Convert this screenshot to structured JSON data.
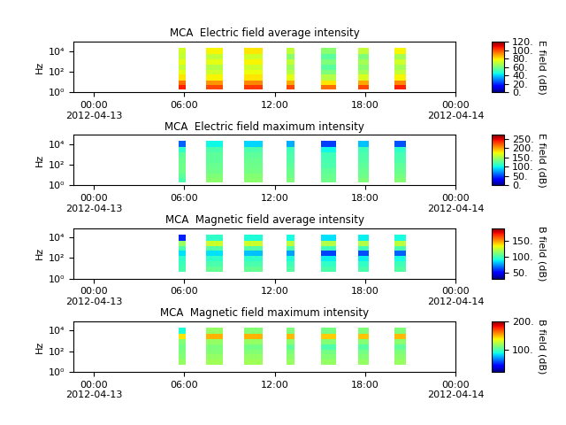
{
  "chart_data": [
    {
      "type": "heatmap",
      "title": "MCA  Electric field average intensity",
      "y_label": "Hz",
      "log": "y",
      "x": [
        [
          "2012-04-13 05:39",
          "2012-04-13 06:06"
        ],
        [
          "2012-04-13 07:27",
          "2012-04-13 08:34"
        ],
        [
          "2012-04-13 09:58",
          "2012-04-13 11:14"
        ],
        [
          "2012-04-13 12:48",
          "2012-04-13 13:20"
        ],
        [
          "2012-04-13 15:05",
          "2012-04-13 16:04"
        ],
        [
          "2012-04-13 17:32",
          "2012-04-13 18:14"
        ],
        [
          "2012-04-13 19:55",
          "2012-04-13 20:44"
        ]
      ],
      "y_edges": [
        2,
        5,
        15,
        50,
        150,
        500,
        1500,
        5000,
        20000
      ],
      "values": [
        [
          105,
          95,
          80,
          75,
          70,
          75,
          70,
          72
        ],
        [
          100,
          90,
          78,
          72,
          68,
          75,
          70,
          78
        ],
        [
          102,
          92,
          80,
          76,
          72,
          78,
          72,
          80
        ],
        [
          100,
          88,
          75,
          68,
          65,
          70,
          62,
          70
        ],
        [
          95,
          80,
          68,
          60,
          55,
          60,
          55,
          62
        ],
        [
          100,
          88,
          74,
          66,
          62,
          66,
          60,
          70
        ],
        [
          105,
          92,
          78,
          70,
          66,
          72,
          66,
          78
        ]
      ],
      "xlim": [
        "2012-04-12 22:40",
        "2012-04-14 00:00"
      ],
      "xticks": [
        {
          "value": "2012-04-13 00:00",
          "label": "00:00\n2012-04-13"
        },
        {
          "value": "2012-04-13 06:00",
          "label": "06:00"
        },
        {
          "value": "2012-04-13 12:00",
          "label": "12:00"
        },
        {
          "value": "2012-04-13 18:00",
          "label": "18:00"
        },
        {
          "value": "2012-04-14 00:00",
          "label": "00:00\n2012-04-14"
        }
      ],
      "ylim": [
        1,
        80000
      ],
      "yticks": [
        {
          "value": 1,
          "label": "10⁰"
        },
        {
          "value": 100,
          "label": "10²"
        },
        {
          "value": 10000,
          "label": "10⁴"
        }
      ],
      "colorbar_label": "E field (dB)",
      "colorbar_lim": [
        0,
        120
      ],
      "colorbar_ticks": [
        {
          "value": 0,
          "label": "0."
        },
        {
          "value": 20,
          "label": "20."
        },
        {
          "value": 40,
          "label": "40."
        },
        {
          "value": 60,
          "label": "60."
        },
        {
          "value": 80,
          "label": "80."
        },
        {
          "value": 100,
          "label": "100."
        },
        {
          "value": 120,
          "label": "120."
        }
      ]
    },
    {
      "type": "heatmap",
      "title": "MCA  Electric field maximum intensity",
      "y_label": "Hz",
      "log": "y",
      "x": [
        [
          "2012-04-13 05:39",
          "2012-04-13 06:06"
        ],
        [
          "2012-04-13 07:27",
          "2012-04-13 08:34"
        ],
        [
          "2012-04-13 09:58",
          "2012-04-13 11:14"
        ],
        [
          "2012-04-13 12:48",
          "2012-04-13 13:20"
        ],
        [
          "2012-04-13 15:05",
          "2012-04-13 16:04"
        ],
        [
          "2012-04-13 17:32",
          "2012-04-13 18:14"
        ],
        [
          "2012-04-13 19:55",
          "2012-04-13 20:44"
        ]
      ],
      "y_edges": [
        2,
        5,
        15,
        50,
        150,
        500,
        1500,
        5000,
        20000
      ],
      "values": [
        [
          120,
          125,
          130,
          130,
          128,
          125,
          110,
          60
        ],
        [
          140,
          135,
          130,
          128,
          125,
          125,
          120,
          100
        ],
        [
          140,
          138,
          132,
          130,
          128,
          125,
          120,
          90
        ],
        [
          135,
          130,
          128,
          125,
          122,
          120,
          115,
          80
        ],
        [
          130,
          128,
          125,
          120,
          118,
          115,
          100,
          50
        ],
        [
          135,
          130,
          128,
          125,
          122,
          120,
          115,
          85
        ],
        [
          138,
          132,
          128,
          125,
          120,
          118,
          110,
          55
        ]
      ],
      "xlim": [
        "2012-04-12 22:40",
        "2012-04-14 00:00"
      ],
      "xticks": [
        {
          "value": "2012-04-13 00:00",
          "label": "00:00\n2012-04-13"
        },
        {
          "value": "2012-04-13 06:00",
          "label": "06:00"
        },
        {
          "value": "2012-04-13 12:00",
          "label": "12:00"
        },
        {
          "value": "2012-04-13 18:00",
          "label": "18:00"
        },
        {
          "value": "2012-04-14 00:00",
          "label": "00:00\n2012-04-14"
        }
      ],
      "ylim": [
        1,
        80000
      ],
      "yticks": [
        {
          "value": 1,
          "label": "10⁰"
        },
        {
          "value": 100,
          "label": "10²"
        },
        {
          "value": 10000,
          "label": "10⁴"
        }
      ],
      "colorbar_label": "E field (dB)",
      "colorbar_lim": [
        0,
        270
      ],
      "colorbar_ticks": [
        {
          "value": 0,
          "label": "0."
        },
        {
          "value": 50,
          "label": "50."
        },
        {
          "value": 100,
          "label": "100."
        },
        {
          "value": 150,
          "label": "150."
        },
        {
          "value": 200,
          "label": "200."
        },
        {
          "value": 250,
          "label": "250."
        }
      ]
    },
    {
      "type": "heatmap",
      "title": "MCA  Magnetic field average intensity",
      "y_label": "Hz",
      "log": "y",
      "x": [
        [
          "2012-04-13 05:39",
          "2012-04-13 06:06"
        ],
        [
          "2012-04-13 07:27",
          "2012-04-13 08:34"
        ],
        [
          "2012-04-13 09:58",
          "2012-04-13 11:14"
        ],
        [
          "2012-04-13 12:48",
          "2012-04-13 13:20"
        ],
        [
          "2012-04-13 15:05",
          "2012-04-13 16:04"
        ],
        [
          "2012-04-13 17:32",
          "2012-04-13 18:14"
        ],
        [
          "2012-04-13 19:55",
          "2012-04-13 20:44"
        ]
      ],
      "y_edges": [
        2,
        5,
        15,
        50,
        150,
        500,
        1500,
        5000,
        20000
      ],
      "values": [
        [
          null,
          100,
          98,
          95,
          85,
          100,
          115,
          55
        ],
        [
          null,
          105,
          100,
          95,
          85,
          102,
          125,
          95
        ],
        [
          null,
          105,
          100,
          95,
          80,
          102,
          125,
          92
        ],
        [
          null,
          102,
          98,
          92,
          75,
          100,
          122,
          90
        ],
        [
          null,
          100,
          95,
          88,
          60,
          98,
          120,
          85
        ],
        [
          null,
          100,
          95,
          88,
          62,
          98,
          120,
          88
        ],
        [
          null,
          102,
          98,
          90,
          65,
          100,
          122,
          90
        ]
      ],
      "xlim": [
        "2012-04-12 22:40",
        "2012-04-14 00:00"
      ],
      "xticks": [
        {
          "value": "2012-04-13 00:00",
          "label": "00:00\n2012-04-13"
        },
        {
          "value": "2012-04-13 06:00",
          "label": "06:00"
        },
        {
          "value": "2012-04-13 12:00",
          "label": "12:00"
        },
        {
          "value": "2012-04-13 18:00",
          "label": "18:00"
        },
        {
          "value": "2012-04-14 00:00",
          "label": "00:00\n2012-04-14"
        }
      ],
      "ylim": [
        1,
        80000
      ],
      "yticks": [
        {
          "value": 1,
          "label": "10⁰"
        },
        {
          "value": 100,
          "label": "10²"
        },
        {
          "value": 10000,
          "label": "10⁴"
        }
      ],
      "colorbar_label": "B field (dB)",
      "colorbar_lim": [
        30,
        190
      ],
      "colorbar_ticks": [
        {
          "value": 50,
          "label": "50."
        },
        {
          "value": 100,
          "label": "100."
        },
        {
          "value": 150,
          "label": "150."
        }
      ]
    },
    {
      "type": "heatmap",
      "title": "MCA  Magnetic field maximum intensity",
      "y_label": "Hz",
      "log": "y",
      "x": [
        [
          "2012-04-13 05:39",
          "2012-04-13 06:06"
        ],
        [
          "2012-04-13 07:27",
          "2012-04-13 08:34"
        ],
        [
          "2012-04-13 09:58",
          "2012-04-13 11:14"
        ],
        [
          "2012-04-13 12:48",
          "2012-04-13 13:20"
        ],
        [
          "2012-04-13 15:05",
          "2012-04-13 16:04"
        ],
        [
          "2012-04-13 17:32",
          "2012-04-13 18:14"
        ],
        [
          "2012-04-13 19:55",
          "2012-04-13 20:44"
        ]
      ],
      "y_edges": [
        2,
        5,
        15,
        50,
        150,
        500,
        1500,
        5000,
        20000
      ],
      "values": [
        [
          null,
          115,
          112,
          110,
          108,
          112,
          140,
          90
        ],
        [
          null,
          118,
          115,
          112,
          110,
          115,
          150,
          115
        ],
        [
          null,
          118,
          115,
          112,
          108,
          115,
          150,
          112
        ],
        [
          null,
          116,
          113,
          110,
          105,
          113,
          148,
          110
        ],
        [
          null,
          115,
          112,
          108,
          100,
          112,
          145,
          108
        ],
        [
          null,
          115,
          112,
          108,
          102,
          112,
          146,
          110
        ],
        [
          null,
          116,
          113,
          110,
          104,
          113,
          148,
          110
        ]
      ],
      "xlim": [
        "2012-04-12 22:40",
        "2012-04-14 00:00"
      ],
      "xticks": [
        {
          "value": "2012-04-13 00:00",
          "label": "00:00\n2012-04-13"
        },
        {
          "value": "2012-04-13 06:00",
          "label": "06:00"
        },
        {
          "value": "2012-04-13 12:00",
          "label": "12:00"
        },
        {
          "value": "2012-04-13 18:00",
          "label": "18:00"
        },
        {
          "value": "2012-04-14 00:00",
          "label": "00:00\n2012-04-14"
        }
      ],
      "ylim": [
        1,
        80000
      ],
      "yticks": [
        {
          "value": 1,
          "label": "10⁰"
        },
        {
          "value": 100,
          "label": "10²"
        },
        {
          "value": 10000,
          "label": "10⁴"
        }
      ],
      "colorbar_label": "B field (dB)",
      "colorbar_lim": [
        20,
        200
      ],
      "colorbar_ticks": [
        {
          "value": 100,
          "label": "100."
        },
        {
          "value": 200,
          "label": "200."
        }
      ]
    }
  ]
}
